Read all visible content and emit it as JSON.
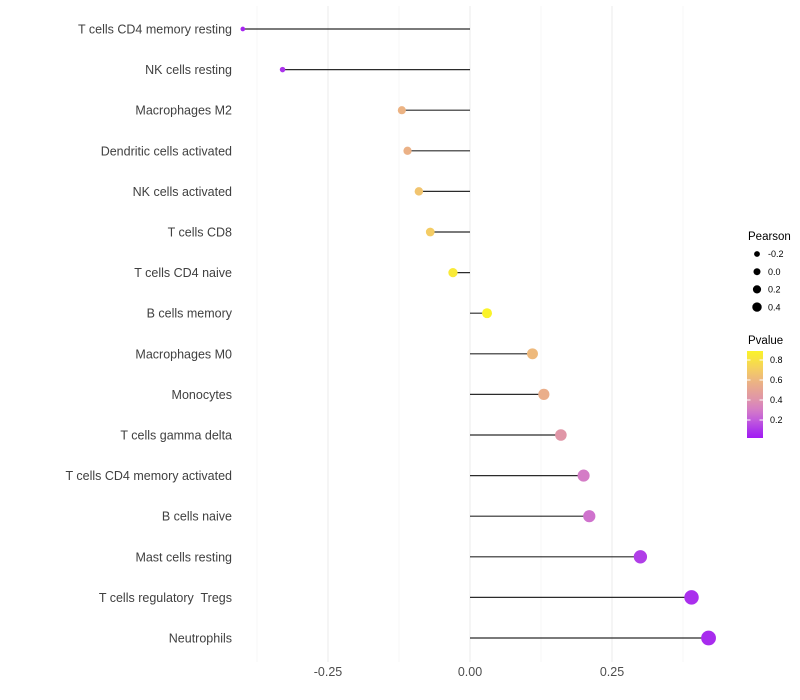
{
  "chart_data": {
    "type": "scatter",
    "variant": "lollipop",
    "orientation": "horizontal",
    "title": "",
    "xlabel": "",
    "ylabel": "",
    "grid": true,
    "legend_position": "right",
    "categories": [
      "T cells CD4 memory resting",
      "NK cells resting",
      "Macrophages M2",
      "Dendritic cells activated",
      "NK cells activated",
      "T cells CD8",
      "T cells CD4 naive",
      "B cells memory",
      "Macrophages M0",
      "Monocytes",
      "T cells gamma delta",
      "T cells CD4 memory activated",
      "B cells naive",
      "Mast cells resting",
      "T cells regulatory  Tregs",
      "Neutrophils"
    ],
    "series": [
      {
        "name": "Pearson",
        "values": [
          -0.4,
          -0.33,
          -0.12,
          -0.11,
          -0.09,
          -0.07,
          -0.03,
          0.03,
          0.11,
          0.13,
          0.16,
          0.2,
          0.21,
          0.3,
          0.39,
          0.42
        ]
      },
      {
        "name": "Pvalue",
        "values": [
          0.05,
          0.09,
          0.58,
          0.57,
          0.66,
          0.7,
          0.84,
          0.89,
          0.61,
          0.55,
          0.42,
          0.3,
          0.27,
          0.12,
          0.08,
          0.07
        ]
      }
    ],
    "xlim": [
      -0.437,
      0.46
    ],
    "baseline": 0,
    "x_ticks": [
      {
        "value": -0.25,
        "label": "-0.25"
      },
      {
        "value": 0.0,
        "label": "0.00"
      },
      {
        "value": 0.25,
        "label": "0.25"
      }
    ],
    "x_minor_gridlines": [
      -0.375,
      -0.125,
      0.125,
      0.375
    ],
    "legends": {
      "size": {
        "title": "Pearson",
        "entries": [
          {
            "label": "-0.2",
            "value": -0.2
          },
          {
            "label": "0.0",
            "value": 0.0
          },
          {
            "label": "0.2",
            "value": 0.2
          },
          {
            "label": "0.4",
            "value": 0.4
          }
        ]
      },
      "color": {
        "title": "Pvalue",
        "range": [
          0.02,
          0.89
        ],
        "ticks": [
          {
            "label": "0.8",
            "value": 0.8
          },
          {
            "label": "0.6",
            "value": 0.6
          },
          {
            "label": "0.4",
            "value": 0.4
          },
          {
            "label": "0.2",
            "value": 0.2
          }
        ],
        "gradient_stops": [
          {
            "p": 0.02,
            "color": "#A21AF4"
          },
          {
            "p": 0.1,
            "color": "#AC36EA"
          },
          {
            "p": 0.2,
            "color": "#C25CDC"
          },
          {
            "p": 0.3,
            "color": "#D47CC6"
          },
          {
            "p": 0.4,
            "color": "#DF93AC"
          },
          {
            "p": 0.5,
            "color": "#E6A495"
          },
          {
            "p": 0.6,
            "color": "#EDB77F"
          },
          {
            "p": 0.7,
            "color": "#F4CC64"
          },
          {
            "p": 0.8,
            "color": "#F8E243"
          },
          {
            "p": 0.89,
            "color": "#FAF32A"
          }
        ]
      }
    },
    "colors": {
      "stem": "#2b2b2b",
      "axis_text": "#404040",
      "tick_text": "#4D4D4D",
      "legend_text": "#000000",
      "legend_dot": "#000000",
      "gridline_major": "#ebebeb",
      "gridline_minor": "#f5f5f5",
      "background": "#ffffff"
    }
  }
}
